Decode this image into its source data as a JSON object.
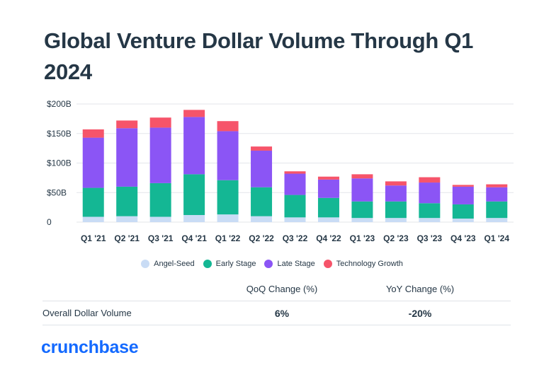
{
  "title": "Global Venture Dollar Volume Through Q1 2024",
  "brand": "crunchbase",
  "colors": {
    "angel_seed": "#c9dcf5",
    "early_stage": "#14b794",
    "late_stage": "#8b55f5",
    "technology_growth": "#f6546a",
    "grid": "#e3e6ea",
    "text": "#253746"
  },
  "chart_data": {
    "type": "bar",
    "stacked": true,
    "categories": [
      "Q1 '21",
      "Q2 '21",
      "Q3 '21",
      "Q4 '21",
      "Q1 '22",
      "Q2 '22",
      "Q3 '22",
      "Q4 '22",
      "Q1 '23",
      "Q2 '23",
      "Q3 '23",
      "Q4 '23",
      "Q1 '24"
    ],
    "y_ticks": [
      "$200B",
      "$150B",
      "$100B",
      "$50B",
      "0"
    ],
    "ylim": [
      0,
      200
    ],
    "grid": true,
    "legend_position": "bottom",
    "series": [
      {
        "name": "Angel-Seed",
        "color": "#c9dcf5",
        "values": [
          9,
          10,
          9,
          12,
          13,
          10,
          8,
          8,
          7,
          7,
          7,
          6,
          7
        ]
      },
      {
        "name": "Early Stage",
        "color": "#14b794",
        "values": [
          49,
          50,
          57,
          69,
          58,
          49,
          38,
          33,
          28,
          28,
          25,
          24,
          28
        ]
      },
      {
        "name": "Late Stage",
        "color": "#8b55f5",
        "values": [
          85,
          99,
          94,
          97,
          83,
          62,
          36,
          31,
          39,
          27,
          35,
          30,
          24
        ]
      },
      {
        "name": "Technology Growth",
        "color": "#f6546a",
        "values": [
          14,
          13,
          17,
          12,
          17,
          7,
          4,
          5,
          7,
          7,
          9,
          3,
          5
        ]
      }
    ]
  },
  "table": {
    "headers": [
      "",
      "QoQ Change (%)",
      "YoY Change (%)"
    ],
    "rows": [
      {
        "label": "Overall Dollar Volume",
        "qoq": "6%",
        "yoy": "-20%"
      }
    ]
  }
}
